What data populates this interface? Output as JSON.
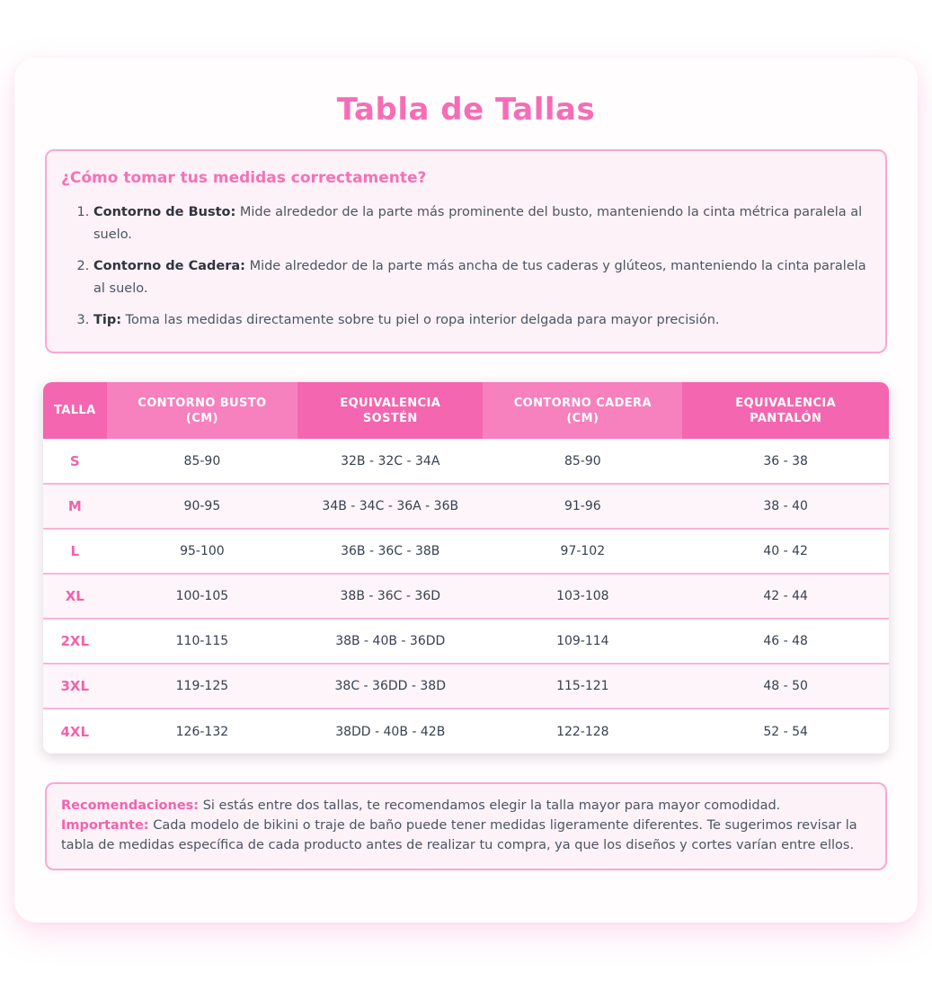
{
  "page": {
    "title": "Tabla de Tallas"
  },
  "colors": {
    "accent_pink": "#f472b6",
    "header_pink_dark": "#f466af",
    "header_pink_light": "#f780bf",
    "panel_border": "#f9a8d4",
    "panel_bg": "#fdf2f8",
    "row_stripe": "#fdf5f9",
    "body_text": "#374151"
  },
  "instructions": {
    "heading": "¿Cómo tomar tus medidas correctamente?",
    "items": [
      {
        "label": "Contorno de Busto:",
        "text": "Mide alrededor de la parte más prominente del busto, manteniendo la cinta métrica paralela al suelo."
      },
      {
        "label": "Contorno de Cadera:",
        "text": "Mide alrededor de la parte más ancha de tus caderas y glúteos, manteniendo la cinta paralela al suelo."
      },
      {
        "label": "Tip:",
        "text": "Toma las medidas directamente sobre tu piel o ropa interior delgada para mayor precisión."
      }
    ]
  },
  "size_table": {
    "columns": [
      {
        "line1": "TALLA",
        "line2": ""
      },
      {
        "line1": "CONTORNO BUSTO",
        "line2": "(CM)"
      },
      {
        "line1": "EQUIVALENCIA",
        "line2": "SOSTÉN"
      },
      {
        "line1": "CONTORNO CADERA",
        "line2": "(CM)"
      },
      {
        "line1": "EQUIVALENCIA",
        "line2": "PANTALÓN"
      }
    ],
    "rows": [
      {
        "talla": "S",
        "busto": "85-90",
        "sosten": "32B - 32C - 34A",
        "cadera": "85-90",
        "pantalon": "36 - 38"
      },
      {
        "talla": "M",
        "busto": "90-95",
        "sosten": "34B - 34C - 36A - 36B",
        "cadera": "91-96",
        "pantalon": "38 - 40"
      },
      {
        "talla": "L",
        "busto": "95-100",
        "sosten": "36B - 36C - 38B",
        "cadera": "97-102",
        "pantalon": "40 - 42"
      },
      {
        "talla": "XL",
        "busto": "100-105",
        "sosten": "38B - 36C - 36D",
        "cadera": "103-108",
        "pantalon": "42 - 44"
      },
      {
        "talla": "2XL",
        "busto": "110-115",
        "sosten": "38B - 40B - 36DD",
        "cadera": "109-114",
        "pantalon": "46 - 48"
      },
      {
        "talla": "3XL",
        "busto": "119-125",
        "sosten": "38C - 36DD - 38D",
        "cadera": "115-121",
        "pantalon": "48 - 50"
      },
      {
        "talla": "4XL",
        "busto": "126-132",
        "sosten": "38DD - 40B - 42B",
        "cadera": "122-128",
        "pantalon": "52 - 54"
      }
    ]
  },
  "notes": [
    {
      "label": "Recomendaciones:",
      "text": "Si estás entre dos tallas, te recomendamos elegir la talla mayor para mayor comodidad."
    },
    {
      "label": "Importante:",
      "text": "Cada modelo de bikini o traje de baño puede tener medidas ligeramente diferentes. Te sugerimos revisar la tabla de medidas específica de cada producto antes de realizar tu compra, ya que los diseños y cortes varían entre ellos."
    }
  ]
}
